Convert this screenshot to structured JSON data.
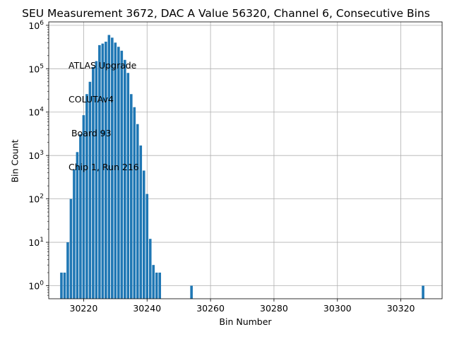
{
  "chart_data": {
    "type": "bar",
    "title": "SEU Measurement 3672, DAC A Value 56320, Channel 6, Consecutive Bins",
    "xlabel": "Bin Number",
    "ylabel": "Bin Count",
    "yscale": "log",
    "xlim": [
      30209,
      30333
    ],
    "ylim": [
      0.5,
      1200000
    ],
    "grid": true,
    "bar_color": "#1f77b4",
    "xticks": [
      30220,
      30240,
      30260,
      30280,
      30300,
      30320
    ],
    "yticks": [
      {
        "value": 1,
        "label": "10^0"
      },
      {
        "value": 10,
        "label": "10^1"
      },
      {
        "value": 100,
        "label": "10^2"
      },
      {
        "value": 1000,
        "label": "10^3"
      },
      {
        "value": 10000,
        "label": "10^4"
      },
      {
        "value": 100000,
        "label": "10^5"
      },
      {
        "value": 1000000,
        "label": "10^6"
      }
    ],
    "annotation": [
      "ATLAS Upgrade",
      "COLUTAv4",
      " Board 93",
      "Chip 1, Run 216"
    ],
    "x": [
      30213,
      30214,
      30215,
      30216,
      30217,
      30218,
      30219,
      30220,
      30221,
      30222,
      30223,
      30224,
      30225,
      30226,
      30227,
      30228,
      30229,
      30230,
      30231,
      30232,
      30233,
      30234,
      30235,
      30236,
      30237,
      30238,
      30239,
      30240,
      30241,
      30242,
      30243,
      30244,
      30254,
      30327
    ],
    "values": [
      2,
      2,
      10,
      100,
      480,
      1200,
      3100,
      8500,
      26000,
      50000,
      110000,
      150000,
      350000,
      380000,
      420000,
      600000,
      520000,
      400000,
      320000,
      260000,
      160000,
      80000,
      26000,
      13000,
      5300,
      1700,
      450,
      130,
      12,
      3,
      2,
      2,
      1,
      1
    ]
  }
}
